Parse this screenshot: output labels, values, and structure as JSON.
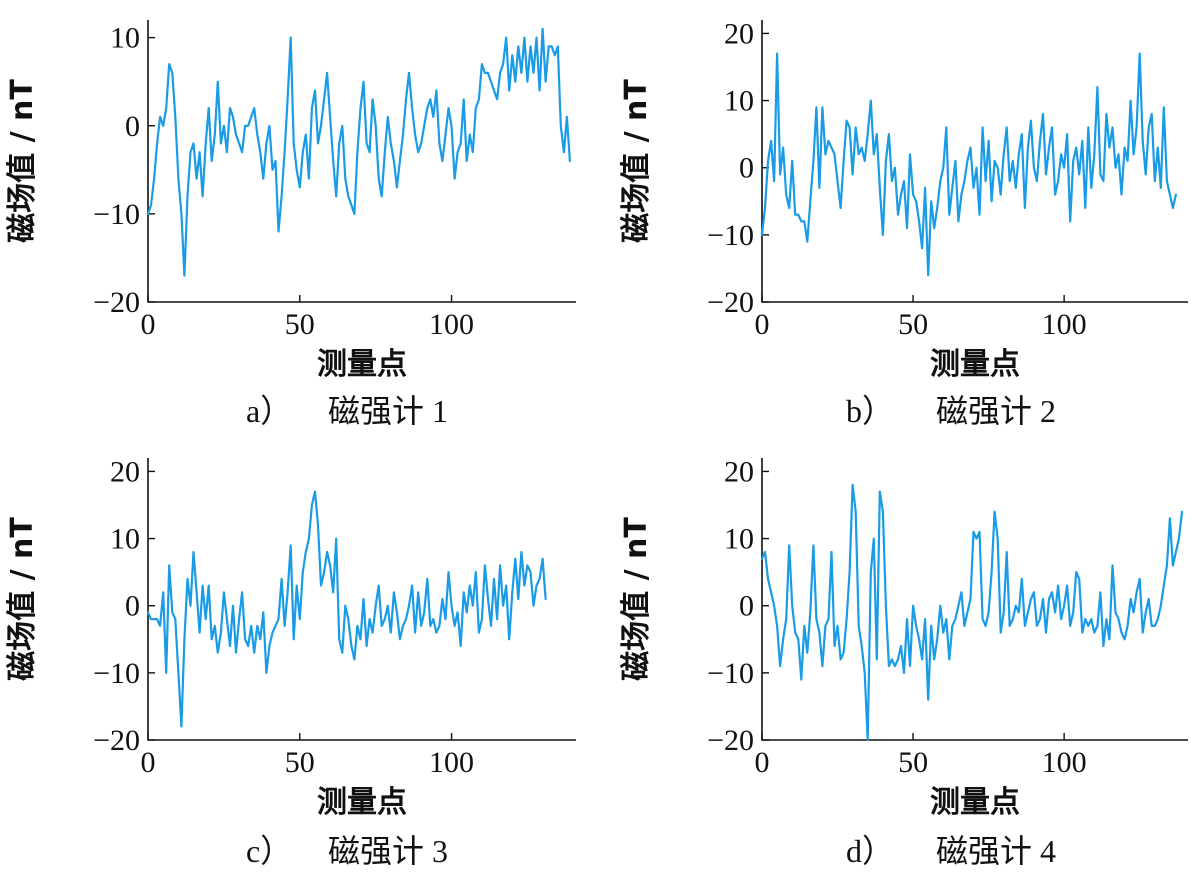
{
  "figure": {
    "captions": [
      {
        "letter": "a）",
        "text": "磁强计 1"
      },
      {
        "letter": "b）",
        "text": "磁强计 2"
      },
      {
        "letter": "c）",
        "text": "磁强计 3"
      },
      {
        "letter": "d）",
        "text": "磁强计 4"
      }
    ]
  },
  "chart_data": [
    {
      "type": "line",
      "title": "磁强计 1",
      "xlabel": "测量点",
      "ylabel": "磁场值 / nT",
      "xlim": [
        0,
        141
      ],
      "ylim": [
        -20,
        12
      ],
      "xticks": [
        0,
        50,
        100
      ],
      "xtick_labels": [
        "0",
        "50",
        "100"
      ],
      "yticks": [
        10,
        0,
        -10,
        -20
      ],
      "ytick_labels": [
        "10",
        "0",
        "−10",
        "−20"
      ],
      "color": "#1a9be6",
      "series": [
        {
          "name": "磁强计 1",
          "x_start": 0,
          "x_step": 1,
          "values": [
            -10,
            -9,
            -6,
            -2,
            1,
            0,
            2,
            7,
            6,
            1,
            -6,
            -10,
            -17,
            -8,
            -3,
            -2,
            -6,
            -3,
            -8,
            -2,
            2,
            -4,
            -1,
            5,
            -2,
            0,
            -3,
            2,
            1,
            -1,
            -2,
            -3,
            0,
            0,
            1,
            2,
            -1,
            -3,
            -6,
            -2,
            0,
            -5,
            -4,
            -12,
            -8,
            -3,
            3,
            10,
            -2,
            -5,
            -7,
            -3,
            -1,
            -6,
            2,
            4,
            -2,
            0,
            3,
            6,
            1,
            -4,
            -8,
            -2,
            0,
            -6,
            -8,
            -9,
            -10,
            -3,
            2,
            5,
            -2,
            -3,
            3,
            0,
            -6,
            -8,
            -3,
            1,
            -2,
            -4,
            -7,
            -4,
            -1,
            3,
            6,
            2,
            -1,
            -3,
            -2,
            0,
            2,
            3,
            1,
            4,
            -2,
            -4,
            -1,
            2,
            0,
            -6,
            -3,
            -2,
            3,
            -4,
            -1,
            -3,
            2,
            3,
            7,
            6,
            6,
            5,
            4,
            3,
            6,
            7,
            10,
            4,
            8,
            5,
            9,
            6,
            10,
            5,
            9,
            6,
            10,
            4,
            11,
            5,
            9,
            9,
            8,
            9,
            0,
            -3,
            1,
            -4
          ]
        }
      ]
    },
    {
      "type": "line",
      "title": "磁强计 2",
      "xlabel": "测量点",
      "ylabel": "磁场值 / nT",
      "xlim": [
        0,
        141
      ],
      "ylim": [
        -20,
        22
      ],
      "xticks": [
        0,
        50,
        100
      ],
      "xtick_labels": [
        "0",
        "50",
        "100"
      ],
      "yticks": [
        20,
        10,
        0,
        -10,
        -20
      ],
      "ytick_labels": [
        "20",
        "10",
        "0",
        "−10",
        "−20"
      ],
      "color": "#1a9be6",
      "series": [
        {
          "name": "磁强计 2",
          "x_start": 0,
          "x_step": 1,
          "values": [
            -10,
            -6,
            1,
            4,
            -2,
            17,
            -1,
            3,
            -4,
            -6,
            1,
            -7,
            -7,
            -8,
            -8,
            -11,
            -5,
            1,
            9,
            -3,
            9,
            2,
            4,
            3,
            2,
            -2,
            -6,
            1,
            7,
            6,
            -1,
            6,
            2,
            3,
            1,
            5,
            10,
            2,
            5,
            -3,
            -10,
            1,
            5,
            -2,
            0,
            -7,
            -4,
            -2,
            -9,
            2,
            -4,
            -5,
            -8,
            -12,
            -3,
            -16,
            -5,
            -9,
            -6,
            -2,
            0,
            6,
            -7,
            -3,
            1,
            -8,
            -4,
            -2,
            1,
            3,
            -3,
            0,
            -7,
            6,
            -2,
            4,
            -5,
            1,
            0,
            -4,
            2,
            6,
            -2,
            1,
            -3,
            2,
            5,
            -6,
            3,
            7,
            0,
            -2,
            4,
            8,
            -1,
            3,
            6,
            -4,
            -2,
            2,
            0,
            5,
            -8,
            1,
            3,
            -1,
            4,
            -6,
            6,
            -3,
            2,
            12,
            -1,
            -2,
            8,
            3,
            6,
            0,
            2,
            -4,
            3,
            1,
            10,
            2,
            6,
            17,
            4,
            -1,
            6,
            8,
            -2,
            3,
            -3,
            9,
            -2,
            -4,
            -6,
            -4
          ]
        }
      ]
    },
    {
      "type": "line",
      "title": "磁强计 3",
      "xlabel": "测量点",
      "ylabel": "磁场值 / nT",
      "xlim": [
        0,
        141
      ],
      "ylim": [
        -20,
        22
      ],
      "xticks": [
        0,
        50,
        100
      ],
      "xtick_labels": [
        "0",
        "50",
        "100"
      ],
      "yticks": [
        20,
        10,
        0,
        -10,
        -20
      ],
      "ytick_labels": [
        "20",
        "10",
        "0",
        "−10",
        "−20"
      ],
      "color": "#1a9be6",
      "series": [
        {
          "name": "磁强计 3",
          "x_start": 0,
          "x_step": 1,
          "values": [
            -1,
            -2,
            -2,
            -2,
            -3,
            2,
            -10,
            6,
            -1,
            -2,
            -10,
            -18,
            -5,
            4,
            0,
            8,
            2,
            -4,
            3,
            -2,
            3,
            -5,
            -3,
            -7,
            -4,
            2,
            -2,
            -6,
            0,
            -7,
            -2,
            2,
            -5,
            -6,
            -3,
            -7,
            -3,
            -5,
            -1,
            -10,
            -6,
            -4,
            -3,
            -2,
            4,
            -3,
            2,
            9,
            -5,
            3,
            -2,
            5,
            8,
            10,
            15,
            17,
            12,
            3,
            5,
            8,
            6,
            2,
            10,
            -5,
            -7,
            0,
            -2,
            -6,
            -8,
            -3,
            -5,
            1,
            -6,
            -2,
            -4,
            0,
            3,
            -3,
            -2,
            0,
            -4,
            2,
            -1,
            -5,
            -3,
            -2,
            0,
            3,
            -4,
            2,
            -3,
            -1,
            4,
            -3,
            -2,
            -4,
            -3,
            1,
            -2,
            5,
            0,
            -3,
            -1,
            -6,
            2,
            -1,
            3,
            0,
            5,
            -4,
            -2,
            6,
            1,
            -3,
            4,
            -2,
            6,
            0,
            3,
            -5,
            2,
            7,
            1,
            8,
            3,
            6,
            5,
            0,
            3,
            4,
            7,
            1
          ]
        }
      ]
    },
    {
      "type": "line",
      "title": "磁强计 4",
      "xlabel": "测量点",
      "ylabel": "磁场值 / nT",
      "xlim": [
        0,
        141
      ],
      "ylim": [
        -20,
        22
      ],
      "xticks": [
        0,
        50,
        100
      ],
      "xtick_labels": [
        "0",
        "50",
        "100"
      ],
      "yticks": [
        20,
        10,
        0,
        -10,
        -20
      ],
      "ytick_labels": [
        "20",
        "10",
        "0",
        "−10",
        "−20"
      ],
      "color": "#1a9be6",
      "series": [
        {
          "name": "磁强计 4",
          "x_start": 0,
          "x_step": 1,
          "values": [
            7,
            8,
            4,
            2,
            0,
            -3,
            -9,
            -5,
            -2,
            9,
            0,
            -4,
            -5,
            -11,
            -3,
            -7,
            -1,
            9,
            -2,
            -4,
            -9,
            -3,
            -2,
            8,
            -6,
            -3,
            -8,
            -7,
            -2,
            5,
            18,
            14,
            -3,
            -6,
            -10,
            -20,
            5,
            10,
            -8,
            17,
            14,
            0,
            -9,
            -8,
            -9,
            -8,
            -6,
            -10,
            -2,
            -9,
            0,
            -3,
            -5,
            -8,
            -2,
            -14,
            -3,
            -8,
            -5,
            0,
            -4,
            -2,
            -8,
            -3,
            -2,
            0,
            2,
            -3,
            -1,
            1,
            11,
            10,
            11,
            -2,
            -3,
            -1,
            5,
            14,
            10,
            -4,
            -1,
            8,
            -3,
            -2,
            0,
            -1,
            4,
            -3,
            -1,
            1,
            2,
            -3,
            -2,
            1,
            -4,
            1,
            2,
            -1,
            3,
            -2,
            0,
            3,
            -3,
            -1,
            5,
            4,
            -4,
            -2,
            -3,
            -2,
            -4,
            -3,
            2,
            -6,
            -2,
            -5,
            6,
            -1,
            -2,
            -4,
            -5,
            -3,
            1,
            -1,
            2,
            4,
            -4,
            -1,
            1,
            -3,
            -3,
            -2,
            0,
            3,
            6,
            13,
            6,
            8,
            10,
            14
          ]
        }
      ]
    }
  ]
}
